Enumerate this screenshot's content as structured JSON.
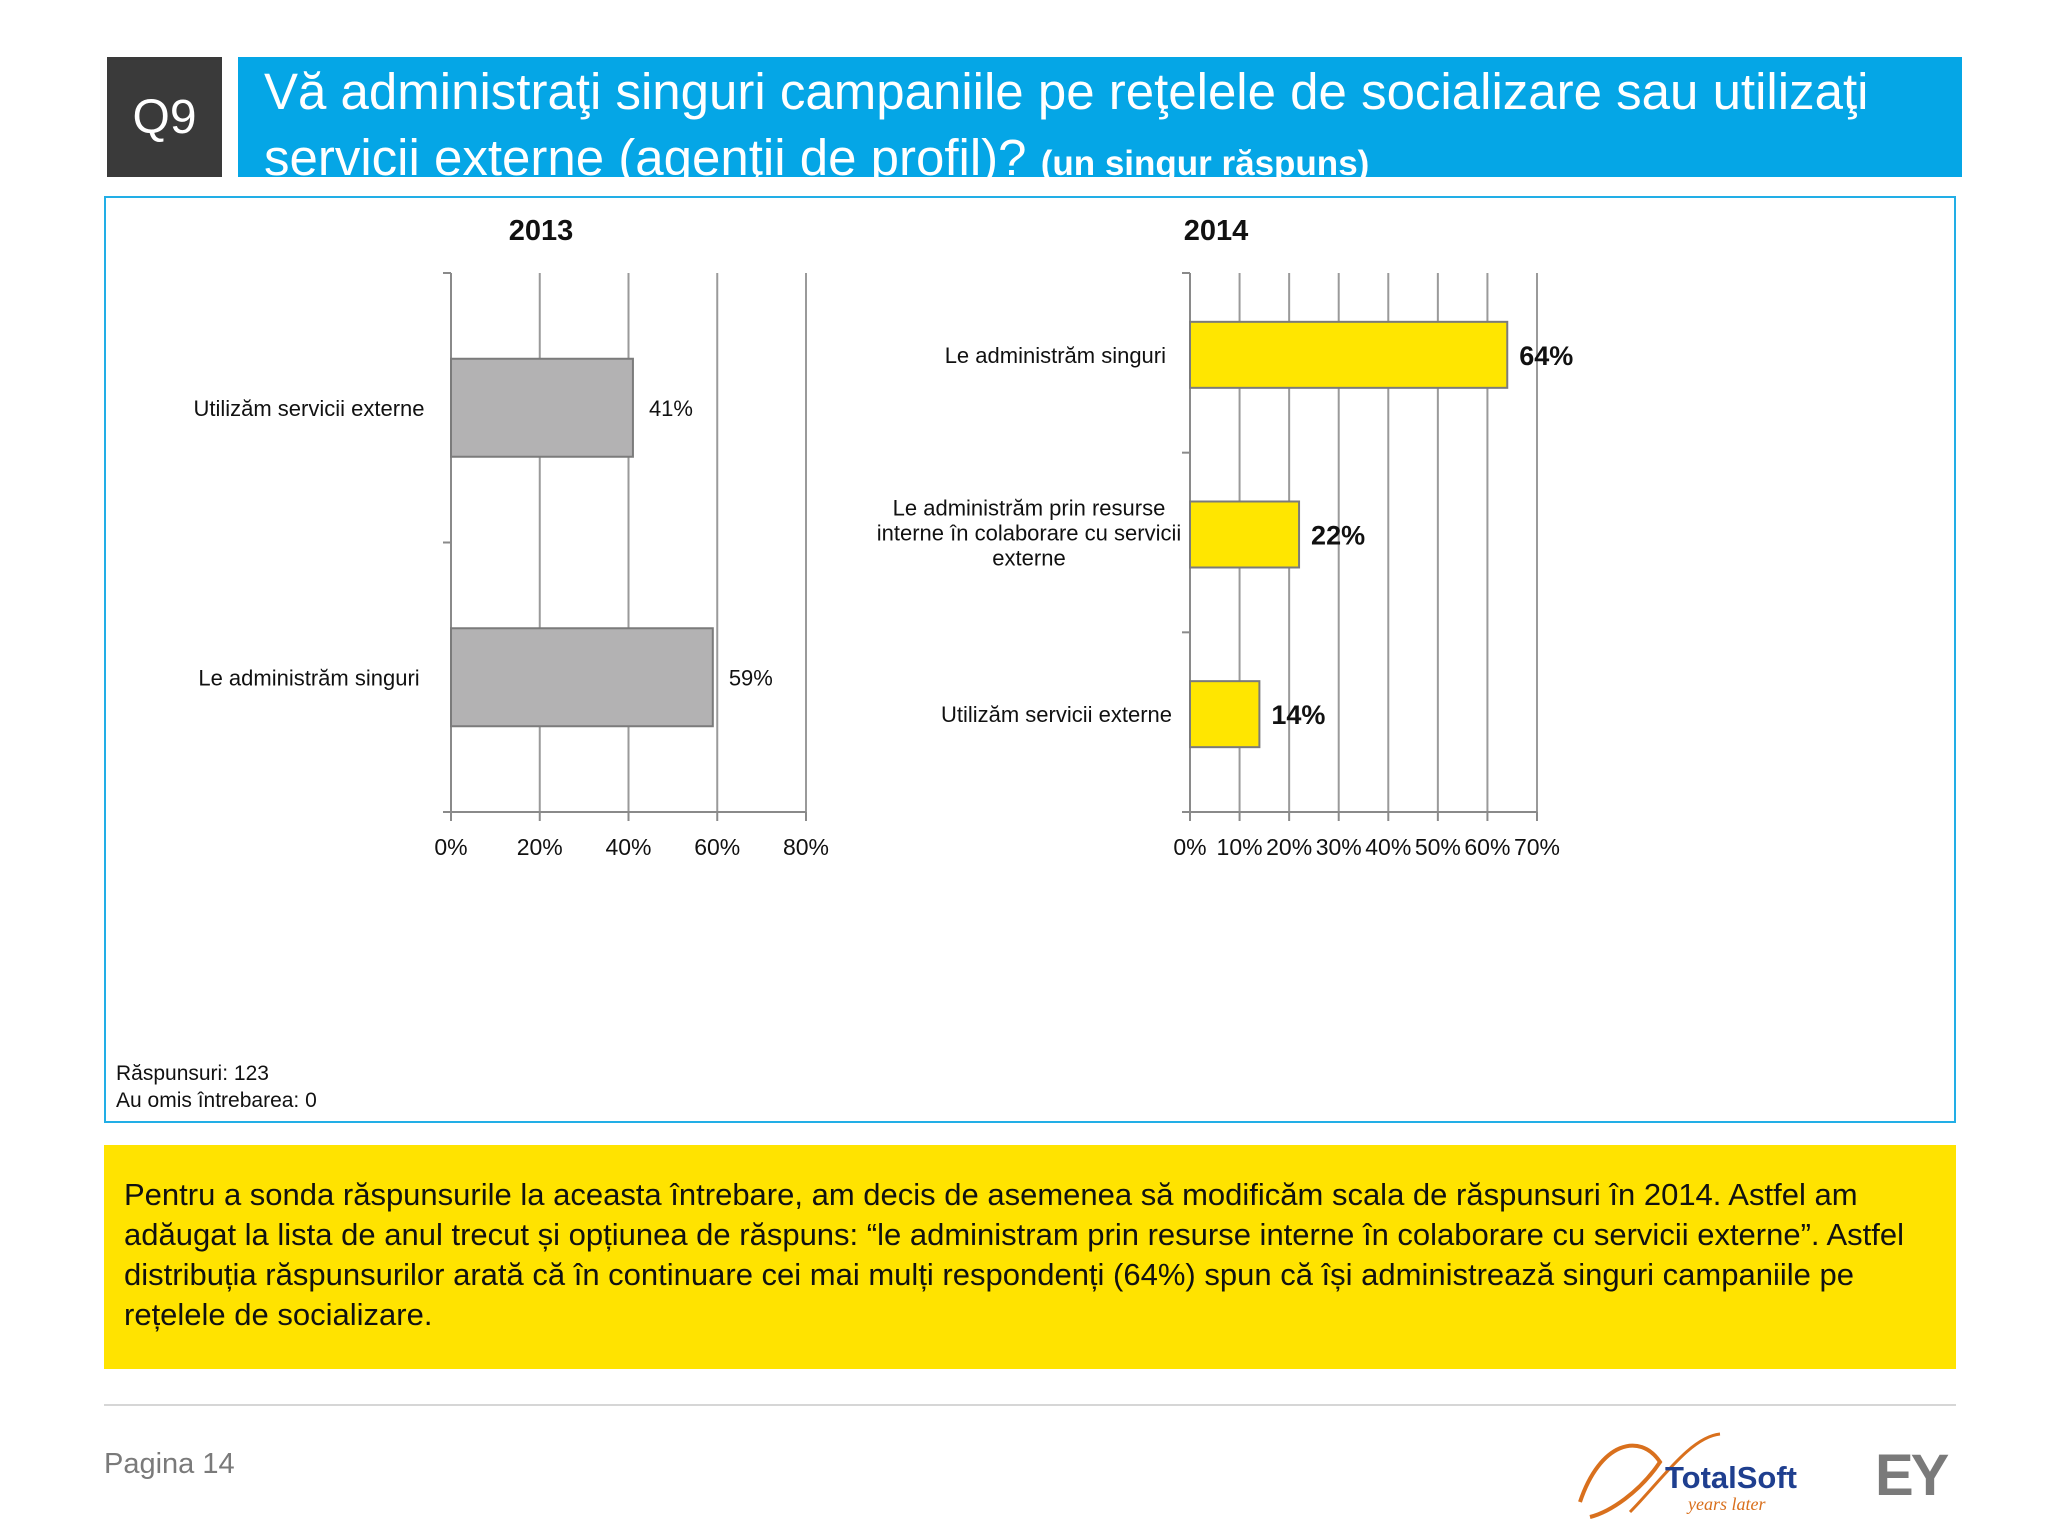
{
  "header": {
    "badge": "Q9",
    "title": "Vă administraţi singuri campaniile pe reţelele de socializare sau utilizaţi servicii externe (agenţii de profil)?",
    "title_note": "(un singur răspuns)"
  },
  "chart_data": [
    {
      "type": "bar",
      "orientation": "horizontal",
      "title": "2013",
      "categories": [
        "Utilizăm servicii externe",
        "Le administrăm singuri"
      ],
      "values": [
        41,
        59
      ],
      "value_labels": [
        "41%",
        "59%"
      ],
      "xlim": [
        0,
        80
      ],
      "x_ticks": [
        0,
        20,
        40,
        60,
        80
      ],
      "x_tick_labels": [
        "0%",
        "20%",
        "40%",
        "60%",
        "80%"
      ],
      "grid": true,
      "bar_color": "#b3b2b3"
    },
    {
      "type": "bar",
      "orientation": "horizontal",
      "title": "2014",
      "categories": [
        [
          "Le administrăm singuri"
        ],
        [
          "Le administrăm prin resurse",
          "interne în colaborare cu servicii",
          "externe"
        ],
        [
          "Utilizăm servicii externe"
        ]
      ],
      "values": [
        64,
        22,
        14
      ],
      "value_labels": [
        "64%",
        "22%",
        "14%"
      ],
      "xlim": [
        0,
        70
      ],
      "x_ticks": [
        0,
        10,
        20,
        30,
        40,
        50,
        60,
        70
      ],
      "x_tick_labels": [
        "0%",
        "10%",
        "20%",
        "30%",
        "40%",
        "50%",
        "60%",
        "70%"
      ],
      "grid": true,
      "bar_color": "#ffe600"
    }
  ],
  "stats": {
    "responses": "Răspunsuri: 123",
    "skipped": "Au omis întrebarea: 0"
  },
  "note": "Pentru a sonda răspunsurile la aceasta întrebare, am decis de asemenea să modificăm scala de răspunsuri în 2014. Astfel am adăugat la lista de anul trecut și opțiunea de răspuns: “le administram prin resurse interne în colaborare cu servicii externe”. Astfel distribuția răspunsurilor arată că în continuare cei mai mulți respondenți (64%) spun că își administrează singuri campaniile pe rețelele de socializare.",
  "footer": {
    "page": "Pagina 14",
    "logo_totalsoft": "TotalSoft",
    "logo_tagline": "years later",
    "logo_ey": "EY"
  },
  "colors": {
    "title_bar": "#05a6e6",
    "badge": "#3a3a3a",
    "note_box": "#ffe300"
  }
}
